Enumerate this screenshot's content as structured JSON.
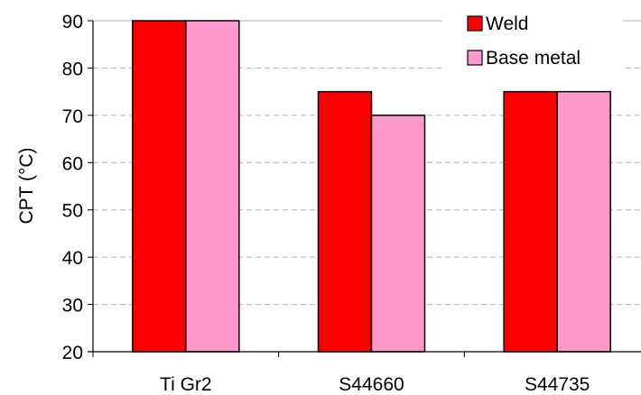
{
  "chart_data": {
    "type": "bar",
    "title": "",
    "xlabel": "",
    "ylabel": "CPT (°C)",
    "ylim": [
      20,
      90
    ],
    "yticks": [
      20,
      30,
      40,
      50,
      60,
      70,
      80,
      90
    ],
    "grid": true,
    "legend_position": "top-right",
    "categories": [
      "Ti Gr2",
      "S44660",
      "S44735"
    ],
    "series": [
      {
        "name": "Weld",
        "color": "#ff0000",
        "values": [
          90,
          75,
          75
        ]
      },
      {
        "name": "Base metal",
        "color": "#ff99cc",
        "values": [
          90,
          70,
          75
        ]
      }
    ]
  }
}
